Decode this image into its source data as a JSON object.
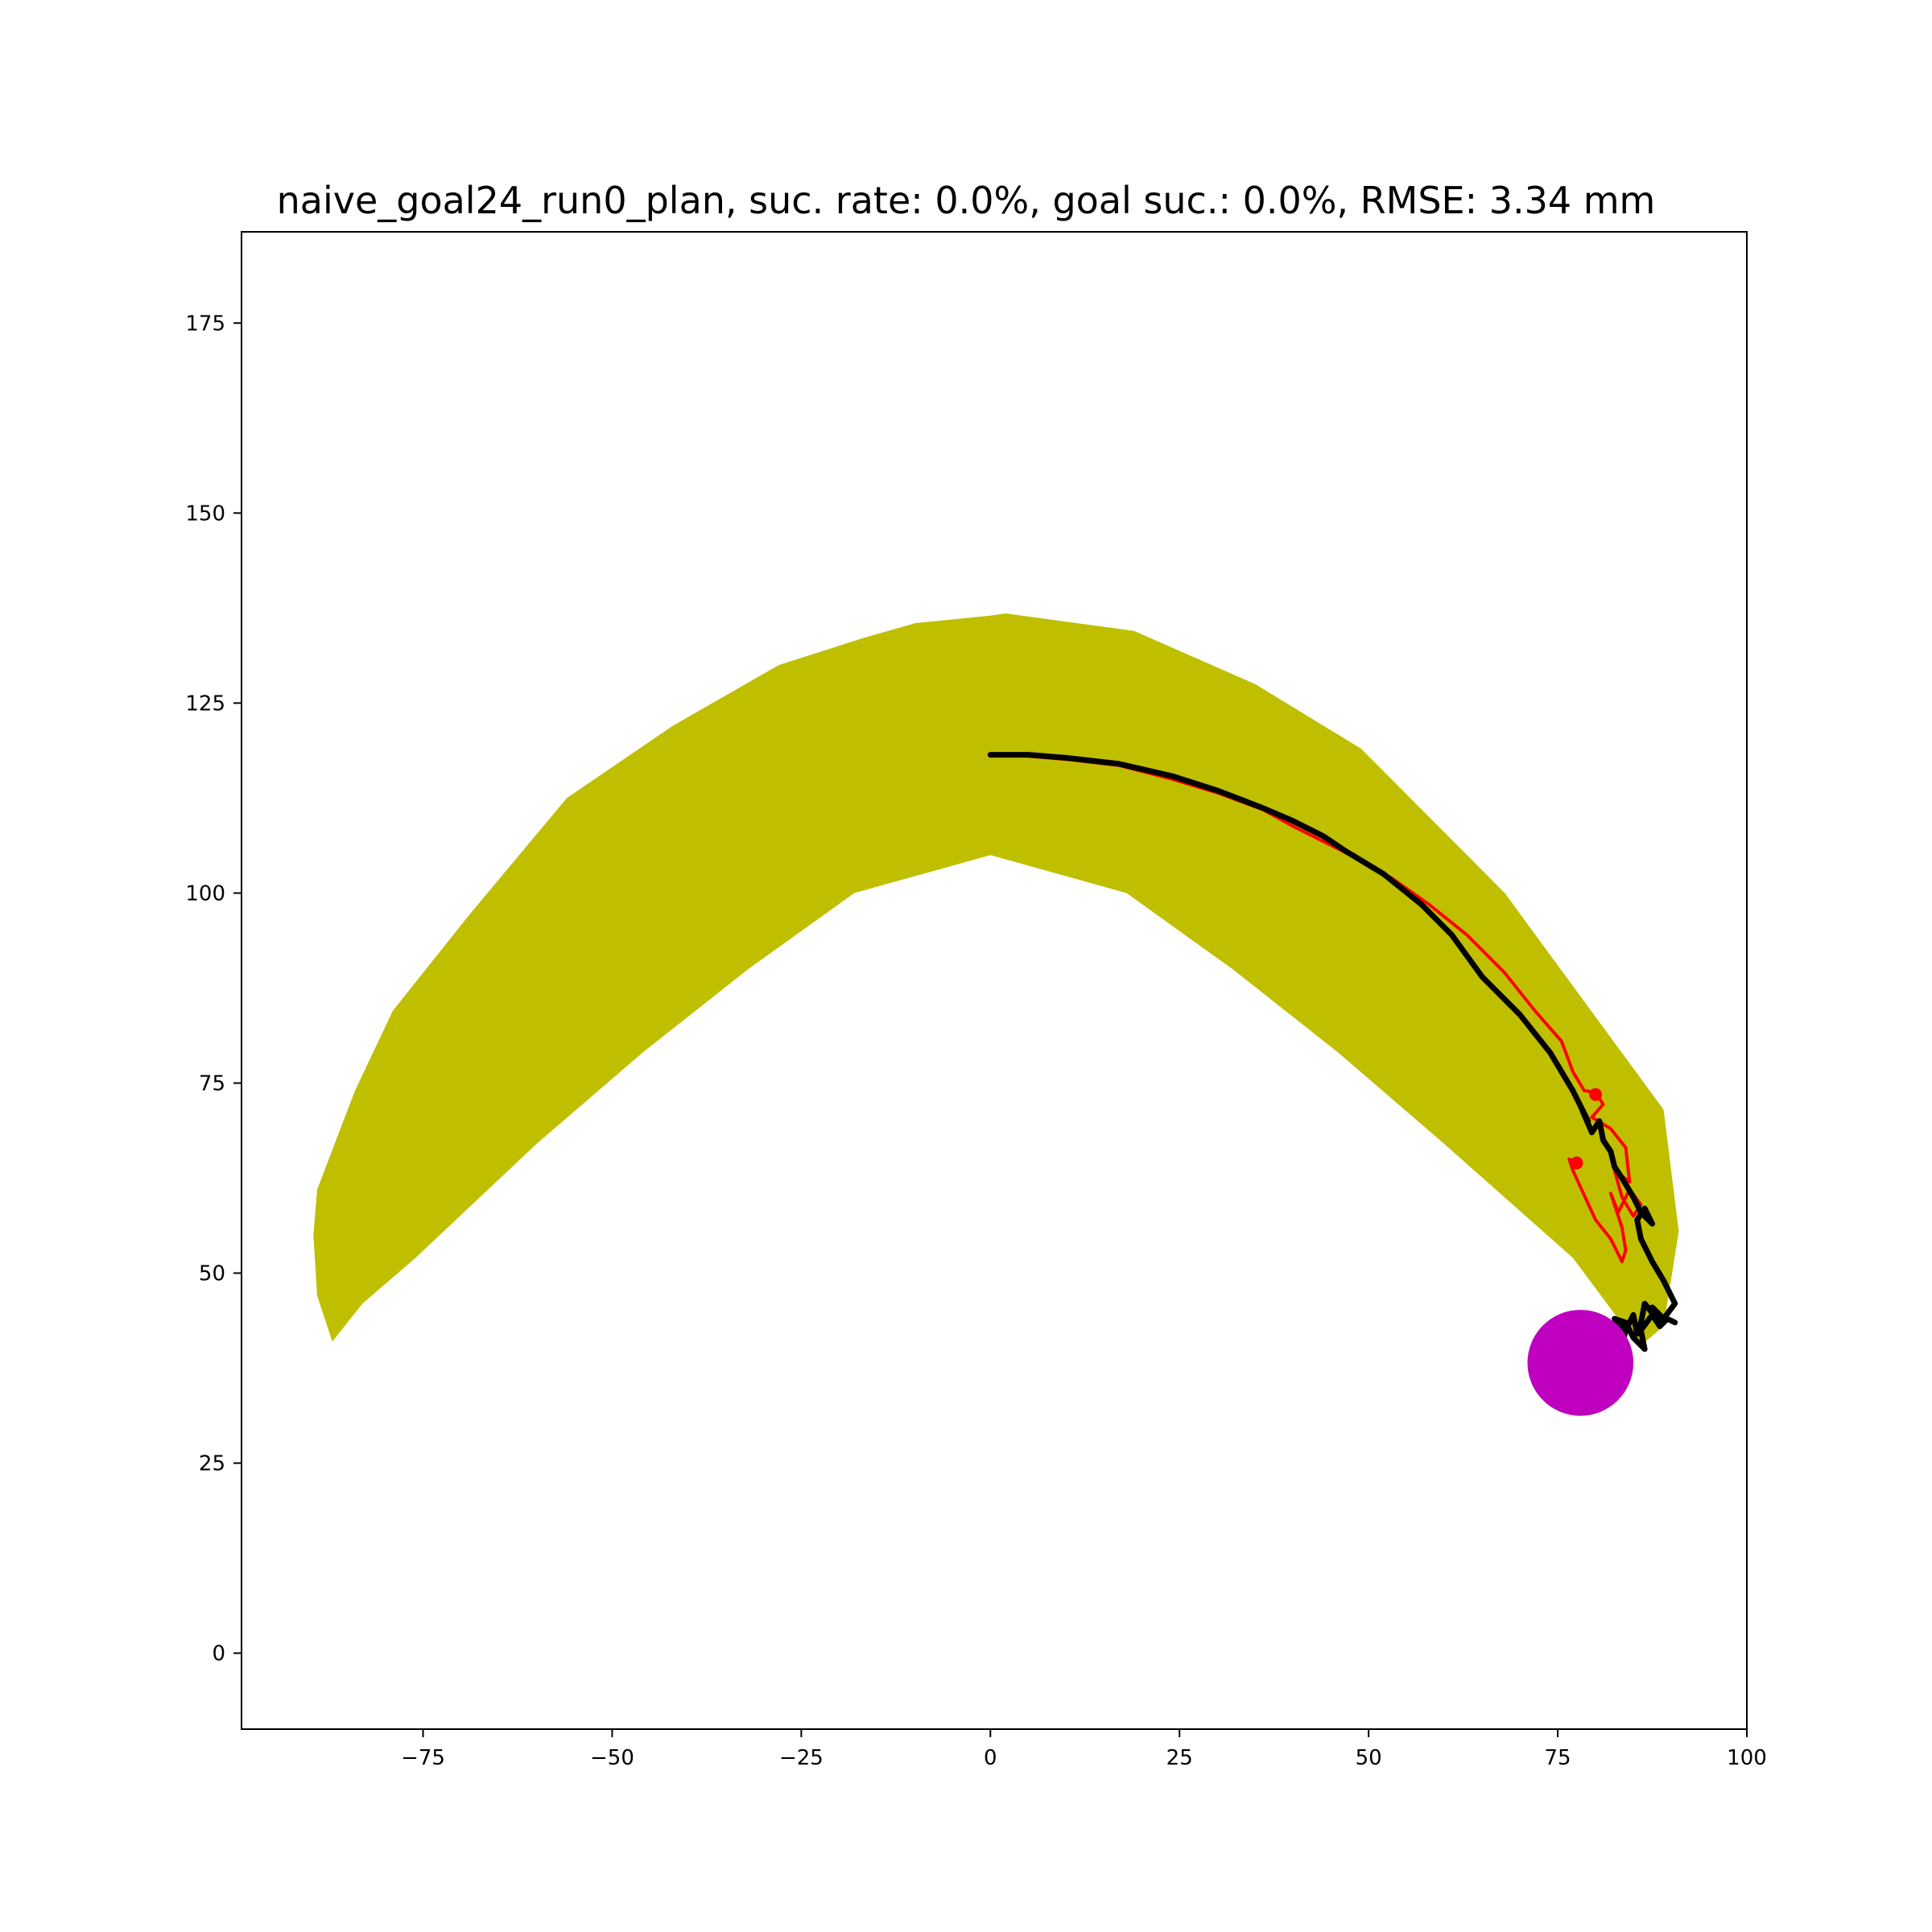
{
  "chart_data": {
    "type": "line",
    "title": "naive_goal24_run0_plan, suc. rate: 0.0%, goal suc.: 0.0%, RMSE: 3.34 mm",
    "xlabel": "",
    "ylabel": "",
    "xlim": [
      -99,
      100
    ],
    "ylim": [
      -10,
      187
    ],
    "xticks": [
      -75,
      -50,
      -25,
      0,
      25,
      50,
      75,
      100
    ],
    "yticks": [
      0,
      25,
      50,
      75,
      100,
      125,
      150,
      175
    ],
    "xtick_labels": [
      "−75",
      "−50",
      "−25",
      "0",
      "25",
      "50",
      "75",
      "100"
    ],
    "ytick_labels": [
      "0",
      "25",
      "50",
      "75",
      "100",
      "125",
      "150",
      "175"
    ],
    "grid": false,
    "legend": "none",
    "colors": {
      "region": "#bfbf00",
      "planned": "#ff0000",
      "executed": "#000000",
      "goal": "#bf00bf"
    },
    "region": {
      "name": "",
      "points": [
        [
          -89.5,
          55
        ],
        [
          -89,
          61
        ],
        [
          -84,
          74
        ],
        [
          -79,
          84.5
        ],
        [
          -69,
          97
        ],
        [
          -56,
          112.5
        ],
        [
          -42,
          122
        ],
        [
          -28,
          130
        ],
        [
          -17,
          133.5
        ],
        [
          -10,
          135.5
        ],
        [
          0,
          136.5
        ],
        [
          2,
          136.8
        ],
        [
          19,
          134.5
        ],
        [
          35,
          127.5
        ],
        [
          49,
          119
        ],
        [
          68,
          100
        ],
        [
          89,
          71.5
        ],
        [
          91,
          55.5
        ],
        [
          89,
          43
        ],
        [
          86,
          40.5
        ],
        [
          83,
          44
        ],
        [
          77,
          52
        ],
        [
          60,
          67
        ],
        [
          46,
          79
        ],
        [
          32,
          90
        ],
        [
          18,
          100
        ],
        [
          0,
          105
        ],
        [
          -18,
          100
        ],
        [
          -32,
          90
        ],
        [
          -46,
          79
        ],
        [
          -60,
          67
        ],
        [
          -76,
          52
        ],
        [
          -83,
          46
        ],
        [
          -87,
          41
        ],
        [
          -89,
          47
        ]
      ]
    },
    "series": [
      {
        "name": "",
        "points": [
          [
            0,
            118.2
          ],
          [
            4,
            118.1
          ],
          [
            10,
            117.6
          ],
          [
            17,
            116.8
          ],
          [
            24,
            115
          ],
          [
            30,
            113.2
          ],
          [
            36,
            111
          ],
          [
            40,
            108.8
          ],
          [
            44,
            106.8
          ],
          [
            48,
            104.8
          ],
          [
            53,
            102
          ],
          [
            58,
            98.5
          ],
          [
            63,
            94.5
          ],
          [
            68,
            89.5
          ],
          [
            72,
            84.5
          ],
          [
            75.5,
            80.5
          ],
          [
            77,
            76.5
          ],
          [
            78.5,
            74
          ],
          [
            80,
            73.8
          ],
          [
            81,
            72.2
          ],
          [
            79.5,
            70.5
          ],
          [
            82,
            69
          ],
          [
            84,
            66.5
          ],
          [
            84.5,
            62
          ],
          [
            82.5,
            63.5
          ],
          [
            83.5,
            60
          ],
          [
            85,
            57.5
          ],
          [
            86,
            59
          ],
          [
            84.5,
            61
          ],
          [
            83,
            58
          ],
          [
            82,
            60.5
          ],
          [
            83.5,
            56
          ],
          [
            84,
            53
          ],
          [
            83.5,
            51.5
          ],
          [
            82,
            54.5
          ],
          [
            80,
            57
          ],
          [
            77,
            63.5
          ],
          [
            76.5,
            65
          ],
          [
            77.5,
            64.5
          ]
        ]
      },
      {
        "name": "",
        "points": [
          [
            0,
            118.2
          ],
          [
            5,
            118.2
          ],
          [
            10,
            117.8
          ],
          [
            17,
            117
          ],
          [
            24,
            115.4
          ],
          [
            30,
            113.5
          ],
          [
            36,
            111.2
          ],
          [
            40,
            109.5
          ],
          [
            44,
            107.5
          ],
          [
            47,
            105.5
          ],
          [
            52,
            102.5
          ],
          [
            57,
            98.5
          ],
          [
            61,
            94.5
          ],
          [
            65,
            89
          ],
          [
            70,
            84
          ],
          [
            74,
            79
          ],
          [
            77,
            74
          ],
          [
            79,
            70
          ],
          [
            78,
            72
          ],
          [
            79.5,
            68.5
          ],
          [
            80.5,
            70
          ],
          [
            81,
            67.5
          ],
          [
            82,
            66
          ],
          [
            82.5,
            64
          ],
          [
            83.5,
            62.5
          ],
          [
            85,
            60
          ],
          [
            86,
            58
          ],
          [
            87.5,
            56.5
          ],
          [
            86.5,
            58.5
          ],
          [
            85.5,
            57
          ],
          [
            86,
            54.5
          ],
          [
            87.5,
            51.5
          ],
          [
            89,
            49
          ],
          [
            90.5,
            46
          ],
          [
            89,
            44
          ],
          [
            87.5,
            45.5
          ],
          [
            88.5,
            43.5
          ],
          [
            86.5,
            46
          ],
          [
            86,
            43.5
          ],
          [
            85.5,
            42
          ],
          [
            85,
            44.5
          ],
          [
            84,
            42.5
          ],
          [
            83.5,
            40.5
          ],
          [
            82.5,
            41.5
          ],
          [
            83.5,
            43
          ],
          [
            82.5,
            44
          ],
          [
            84,
            43.5
          ],
          [
            85,
            41.5
          ],
          [
            86.5,
            40
          ],
          [
            86,
            42.5
          ],
          [
            87.5,
            44.5
          ],
          [
            88.5,
            43
          ],
          [
            89.5,
            44
          ],
          [
            90.5,
            43.5
          ]
        ]
      }
    ],
    "goal": {
      "name": "",
      "x": 78,
      "y": 38.2,
      "radius": 7
    }
  }
}
